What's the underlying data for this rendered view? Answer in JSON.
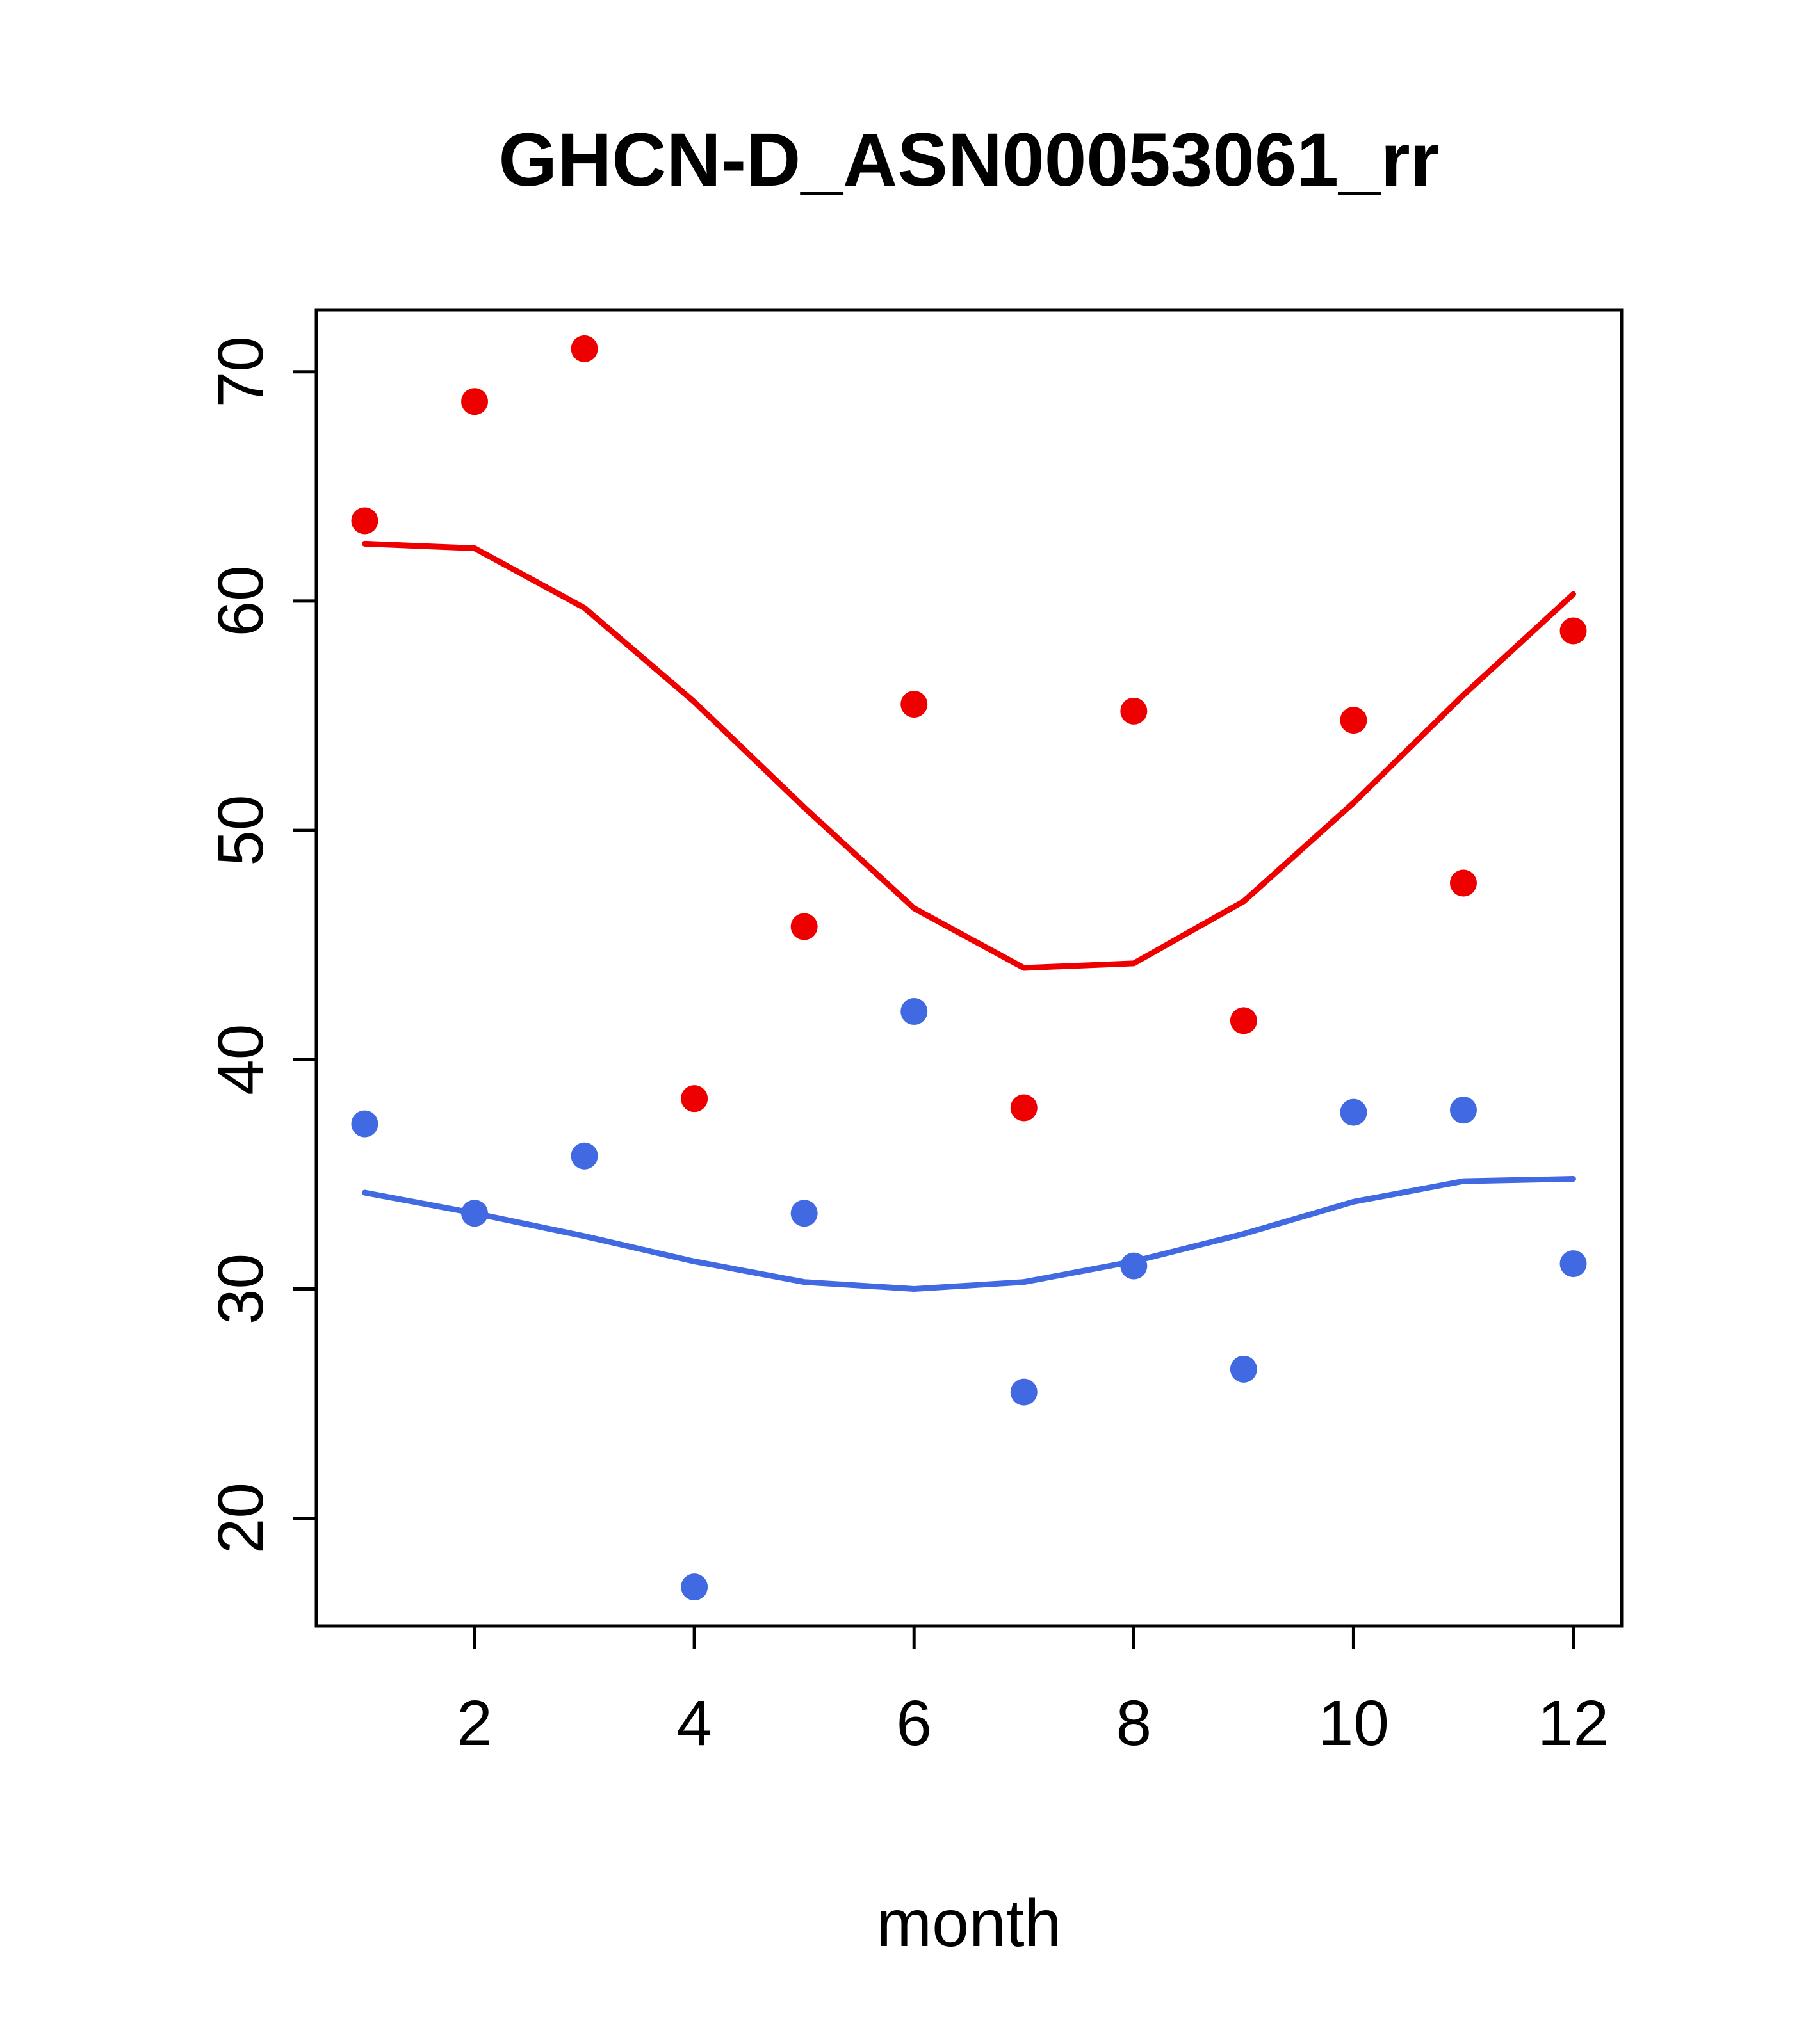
{
  "page": {
    "background": "#ffffff"
  },
  "chart_data": {
    "type": "scatter",
    "title": "GHCN-D_ASN00053061_rr",
    "xlabel": "month",
    "ylabel": "",
    "xlim": [
      0.56,
      12.44
    ],
    "ylim": [
      15.3,
      72.7
    ],
    "xticks": [
      2,
      4,
      6,
      8,
      10,
      12
    ],
    "yticks": [
      20,
      30,
      40,
      50,
      60,
      70
    ],
    "grid": false,
    "legend": "none",
    "x": [
      1,
      2,
      3,
      4,
      5,
      6,
      7,
      8,
      9,
      10,
      11,
      12
    ],
    "series": [
      {
        "name": "red-points",
        "kind": "points",
        "color": "#ee0000",
        "values": [
          63.5,
          68.7,
          71.0,
          38.3,
          45.8,
          55.5,
          37.9,
          55.2,
          41.7,
          54.8,
          47.7,
          58.7
        ]
      },
      {
        "name": "red-smooth-line",
        "kind": "line",
        "color": "#ee0000",
        "values": [
          62.5,
          62.3,
          59.7,
          55.6,
          51.0,
          46.6,
          44.0,
          44.2,
          46.9,
          51.2,
          55.9,
          60.3
        ]
      },
      {
        "name": "blue-points",
        "kind": "points",
        "color": "#4169e1",
        "values": [
          37.2,
          33.3,
          35.8,
          17.0,
          33.3,
          42.1,
          25.5,
          31.0,
          26.5,
          37.7,
          37.8,
          31.1
        ]
      },
      {
        "name": "blue-smooth-line",
        "kind": "line",
        "color": "#4169e1",
        "values": [
          34.2,
          33.3,
          32.3,
          31.2,
          30.3,
          30.0,
          30.3,
          31.2,
          32.4,
          33.8,
          34.7,
          34.8
        ]
      }
    ]
  }
}
